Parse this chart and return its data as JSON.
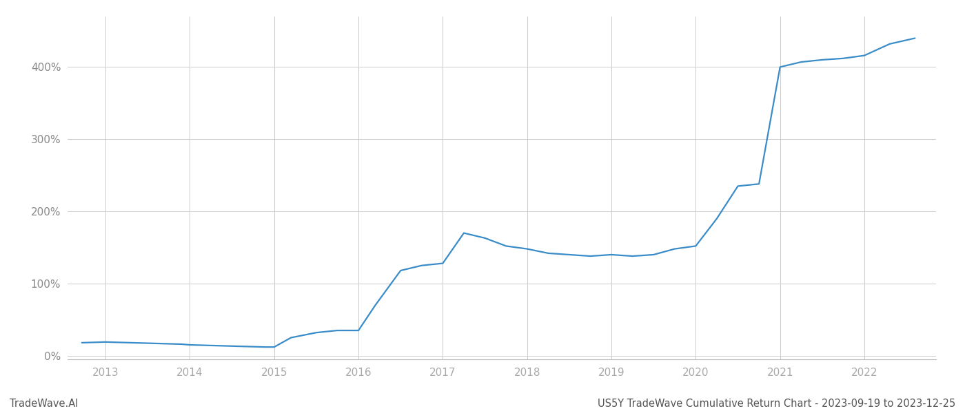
{
  "title": "US5Y TradeWave Cumulative Return Chart - 2023-09-19 to 2023-12-25",
  "watermark": "TradeWave.AI",
  "line_color": "#3a8cc8",
  "background_color": "#ffffff",
  "grid_color": "#cccccc",
  "x_years": [
    2013,
    2014,
    2015,
    2016,
    2017,
    2018,
    2019,
    2020,
    2021,
    2022
  ],
  "data_x": [
    2012.72,
    2013.0,
    2013.3,
    2013.6,
    2013.9,
    2014.0,
    2014.3,
    2014.6,
    2014.9,
    2015.0,
    2015.2,
    2015.5,
    2015.75,
    2016.0,
    2016.2,
    2016.5,
    2016.75,
    2017.0,
    2017.25,
    2017.5,
    2017.75,
    2018.0,
    2018.25,
    2018.5,
    2018.75,
    2019.0,
    2019.25,
    2019.5,
    2019.75,
    2020.0,
    2020.25,
    2020.5,
    2020.75,
    2021.0,
    2021.25,
    2021.5,
    2021.75,
    2022.0,
    2022.3,
    2022.6
  ],
  "data_y": [
    18,
    19,
    18,
    17,
    16,
    15,
    14,
    13,
    12,
    12,
    25,
    32,
    35,
    35,
    70,
    118,
    125,
    128,
    170,
    163,
    152,
    148,
    142,
    140,
    138,
    140,
    138,
    140,
    148,
    152,
    190,
    235,
    238,
    400,
    407,
    410,
    412,
    416,
    432,
    440
  ],
  "ylim": [
    -5,
    470
  ],
  "yticks": [
    0,
    100,
    200,
    300,
    400
  ],
  "xlim": [
    2012.55,
    2022.85
  ],
  "title_fontsize": 10.5,
  "watermark_fontsize": 10.5,
  "tick_fontsize": 11,
  "line_width": 1.6
}
